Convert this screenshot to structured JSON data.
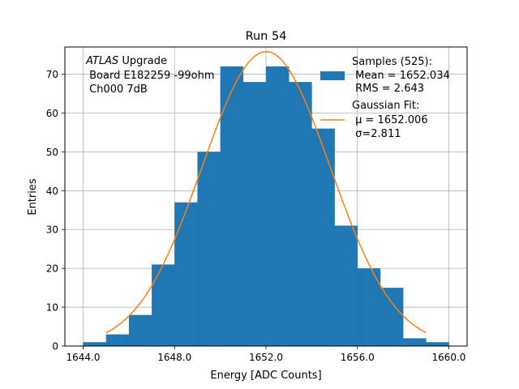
{
  "chart_data": {
    "type": "bar",
    "title": "Run 54",
    "xlabel": "Energy [ADC Counts]",
    "ylabel": "Entries",
    "xlim": [
      1643.2,
      1660.8
    ],
    "ylim": [
      0,
      77
    ],
    "grid": true,
    "x_ticks": [
      1644,
      1648,
      1652,
      1656,
      1660
    ],
    "x_tick_labels": [
      "1644.0",
      "1648.0",
      "1652.0",
      "1656.0",
      "1660.0"
    ],
    "y_ticks": [
      0,
      10,
      20,
      30,
      40,
      50,
      60,
      70
    ],
    "y_tick_labels": [
      "0",
      "10",
      "20",
      "30",
      "40",
      "50",
      "60",
      "70"
    ],
    "bin_edges": [
      1644,
      1645,
      1646,
      1647,
      1648,
      1649,
      1650,
      1651,
      1652,
      1653,
      1654,
      1655,
      1656,
      1657,
      1658,
      1659,
      1660
    ],
    "counts": [
      1,
      3,
      8,
      21,
      37,
      50,
      72,
      68,
      72,
      68,
      56,
      31,
      20,
      15,
      2,
      1
    ],
    "fit": {
      "mu": 1652.006,
      "sigma": 2.811,
      "amplitude": 75.8,
      "x_range": [
        1645,
        1659
      ]
    },
    "annotation": {
      "line1_italic": "ATLAS",
      "line1_rest": " Upgrade",
      "line2": " Board E182259 -99ohm",
      "line3": " Ch000 7dB"
    },
    "legend": {
      "placement": "top-right",
      "entries": [
        {
          "type": "patch",
          "lines": [
            "Samples (525):",
            " Mean = 1652.034",
            " RMS = 2.643"
          ]
        },
        {
          "type": "line",
          "lines": [
            "Gaussian Fit:",
            " μ = 1652.006",
            " σ=2.811"
          ]
        }
      ]
    },
    "colors": {
      "bars": "#1f77b4",
      "fit_line": "#ff7f0e",
      "grid": "#b0b0b0",
      "axes": "#000000"
    }
  }
}
